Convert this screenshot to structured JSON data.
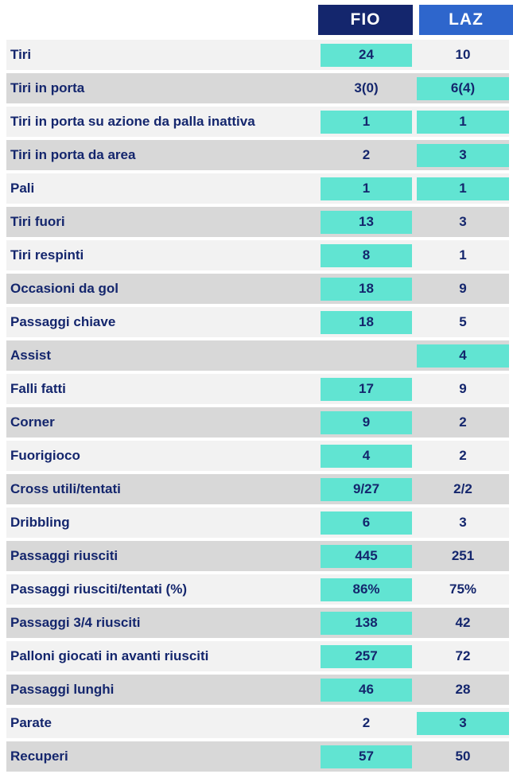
{
  "header": {
    "fio": {
      "label": "FIO",
      "bg": "#14266d"
    },
    "laz": {
      "label": "LAZ",
      "bg": "#2e66cc"
    }
  },
  "colors": {
    "highlight": "#61e4d2",
    "text": "#14266d",
    "row_light": "#f2f2f2",
    "row_dark": "#d8d8d8"
  },
  "rows": [
    {
      "label": "Tiri",
      "fio": {
        "value": "24",
        "highlight": true
      },
      "laz": {
        "value": "10",
        "highlight": false
      }
    },
    {
      "label": "Tiri in porta",
      "fio": {
        "value": "3(0)",
        "highlight": false
      },
      "laz": {
        "value": "6(4)",
        "highlight": true
      }
    },
    {
      "label": "Tiri in porta su azione da palla inattiva",
      "fio": {
        "value": "1",
        "highlight": true
      },
      "laz": {
        "value": "1",
        "highlight": true
      }
    },
    {
      "label": "Tiri in porta da area",
      "fio": {
        "value": "2",
        "highlight": false
      },
      "laz": {
        "value": "3",
        "highlight": true
      }
    },
    {
      "label": "Pali",
      "fio": {
        "value": "1",
        "highlight": true
      },
      "laz": {
        "value": "1",
        "highlight": true
      }
    },
    {
      "label": "Tiri fuori",
      "fio": {
        "value": "13",
        "highlight": true
      },
      "laz": {
        "value": "3",
        "highlight": false
      }
    },
    {
      "label": "Tiri respinti",
      "fio": {
        "value": "8",
        "highlight": true
      },
      "laz": {
        "value": "1",
        "highlight": false
      }
    },
    {
      "label": "Occasioni da gol",
      "fio": {
        "value": "18",
        "highlight": true
      },
      "laz": {
        "value": "9",
        "highlight": false
      }
    },
    {
      "label": "Passaggi chiave",
      "fio": {
        "value": "18",
        "highlight": true
      },
      "laz": {
        "value": "5",
        "highlight": false
      }
    },
    {
      "label": "Assist",
      "fio": {
        "value": "",
        "highlight": false
      },
      "laz": {
        "value": "4",
        "highlight": true
      }
    },
    {
      "label": "Falli fatti",
      "fio": {
        "value": "17",
        "highlight": true
      },
      "laz": {
        "value": "9",
        "highlight": false
      }
    },
    {
      "label": "Corner",
      "fio": {
        "value": "9",
        "highlight": true
      },
      "laz": {
        "value": "2",
        "highlight": false
      }
    },
    {
      "label": "Fuorigioco",
      "fio": {
        "value": "4",
        "highlight": true
      },
      "laz": {
        "value": "2",
        "highlight": false
      }
    },
    {
      "label": "Cross utili/tentati",
      "fio": {
        "value": "9/27",
        "highlight": true
      },
      "laz": {
        "value": "2/2",
        "highlight": false
      }
    },
    {
      "label": "Dribbling",
      "fio": {
        "value": "6",
        "highlight": true
      },
      "laz": {
        "value": "3",
        "highlight": false
      }
    },
    {
      "label": "Passaggi riusciti",
      "fio": {
        "value": "445",
        "highlight": true
      },
      "laz": {
        "value": "251",
        "highlight": false
      }
    },
    {
      "label": "Passaggi riusciti/tentati (%)",
      "fio": {
        "value": "86%",
        "highlight": true
      },
      "laz": {
        "value": "75%",
        "highlight": false
      }
    },
    {
      "label": "Passaggi 3/4 riusciti",
      "fio": {
        "value": "138",
        "highlight": true
      },
      "laz": {
        "value": "42",
        "highlight": false
      }
    },
    {
      "label": "Palloni giocati in avanti riusciti",
      "fio": {
        "value": "257",
        "highlight": true
      },
      "laz": {
        "value": "72",
        "highlight": false
      }
    },
    {
      "label": "Passaggi lunghi",
      "fio": {
        "value": "46",
        "highlight": true
      },
      "laz": {
        "value": "28",
        "highlight": false
      }
    },
    {
      "label": "Parate",
      "fio": {
        "value": "2",
        "highlight": false
      },
      "laz": {
        "value": "3",
        "highlight": true
      }
    },
    {
      "label": "Recuperi",
      "fio": {
        "value": "57",
        "highlight": true
      },
      "laz": {
        "value": "50",
        "highlight": false
      }
    }
  ],
  "chart_data": {
    "type": "table",
    "columns": [
      "FIO",
      "LAZ"
    ],
    "categories": [
      "Tiri",
      "Tiri in porta",
      "Tiri in porta su azione da palla inattiva",
      "Tiri in porta da area",
      "Pali",
      "Tiri fuori",
      "Tiri respinti",
      "Occasioni da gol",
      "Passaggi chiave",
      "Assist",
      "Falli fatti",
      "Corner",
      "Fuorigioco",
      "Cross utili/tentati",
      "Dribbling",
      "Passaggi riusciti",
      "Passaggi riusciti/tentati (%)",
      "Passaggi 3/4 riusciti",
      "Palloni giocati in avanti riusciti",
      "Passaggi lunghi",
      "Parate",
      "Recuperi"
    ],
    "series": [
      {
        "name": "FIO",
        "values": [
          "24",
          "3(0)",
          "1",
          "2",
          "1",
          "13",
          "8",
          "18",
          "18",
          "",
          "17",
          "9",
          "4",
          "9/27",
          "6",
          "445",
          "86%",
          "138",
          "257",
          "46",
          "2",
          "57"
        ]
      },
      {
        "name": "LAZ",
        "values": [
          "10",
          "6(4)",
          "1",
          "3",
          "1",
          "3",
          "1",
          "9",
          "5",
          "4",
          "9",
          "2",
          "2",
          "2/2",
          "3",
          "251",
          "75%",
          "42",
          "72",
          "28",
          "3",
          "50"
        ]
      }
    ],
    "leader_per_category": [
      "FIO",
      "LAZ",
      "both",
      "LAZ",
      "both",
      "FIO",
      "FIO",
      "FIO",
      "FIO",
      "LAZ",
      "FIO",
      "FIO",
      "FIO",
      "FIO",
      "FIO",
      "FIO",
      "FIO",
      "FIO",
      "FIO",
      "FIO",
      "LAZ",
      "FIO"
    ],
    "legend_position": "top",
    "highlight_style": "teal box marks leading team"
  }
}
